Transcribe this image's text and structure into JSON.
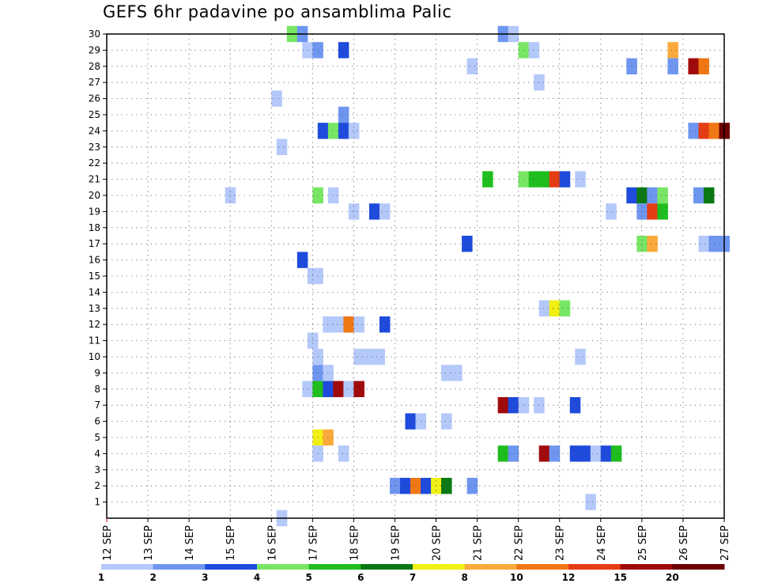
{
  "chart_data": {
    "type": "heatmap",
    "title": "GEFS 6hr padavine po ansamblima Palic",
    "x_start_label_index": 0,
    "x_steps_per_day": 4,
    "x_total_steps": 60,
    "x_labels": [
      "12 SEP",
      "13 SEP",
      "14 SEP",
      "15 SEP",
      "16 SEP",
      "17 SEP",
      "18 SEP",
      "19 SEP",
      "20 SEP",
      "21 SEP",
      "22 SEP",
      "23 SEP",
      "24 SEP",
      "25 SEP",
      "26 SEP",
      "27 SEP"
    ],
    "y_members": [
      1,
      2,
      3,
      4,
      5,
      6,
      7,
      8,
      9,
      10,
      11,
      12,
      13,
      14,
      15,
      16,
      17,
      18,
      19,
      20,
      21,
      22,
      23,
      24,
      25,
      26,
      27,
      28,
      29,
      30
    ],
    "ylim": [
      0,
      30
    ],
    "grid": true,
    "colorbar": {
      "colors": [
        "#b4c8fa",
        "#6e96f0",
        "#1e4bdc",
        "#78e664",
        "#1ebe1e",
        "#0a7814",
        "#f0f014",
        "#faaa3c",
        "#f07814",
        "#e63c14",
        "#a00a0a",
        "#6e0000"
      ],
      "labels": [
        "1",
        "2",
        "3",
        "4",
        "5",
        "6",
        "7",
        "8",
        "10",
        "12",
        "15",
        "20"
      ]
    },
    "cells": [
      [
        17.5,
        30,
        3
      ],
      [
        18.5,
        30,
        1
      ],
      [
        19,
        29,
        0
      ],
      [
        20,
        29,
        1
      ],
      [
        22.5,
        29,
        2
      ],
      [
        38,
        30,
        1
      ],
      [
        39,
        30,
        0
      ],
      [
        40,
        29,
        3
      ],
      [
        41,
        29,
        0
      ],
      [
        54.5,
        29,
        7
      ],
      [
        35,
        28,
        0
      ],
      [
        50.5,
        28,
        1
      ],
      [
        54.5,
        28,
        1
      ],
      [
        56.5,
        28,
        10
      ],
      [
        57.5,
        28,
        8
      ],
      [
        41.5,
        27,
        0
      ],
      [
        16,
        26,
        0
      ],
      [
        22.5,
        25,
        1
      ],
      [
        20.5,
        24,
        2
      ],
      [
        21.5,
        24,
        3
      ],
      [
        22.5,
        24,
        2
      ],
      [
        23.5,
        24,
        0
      ],
      [
        56.5,
        24,
        1
      ],
      [
        57.5,
        24,
        9
      ],
      [
        58.5,
        24,
        8
      ],
      [
        59.5,
        24,
        11
      ],
      [
        16.5,
        23,
        0
      ],
      [
        36.5,
        21,
        4
      ],
      [
        40,
        21,
        3
      ],
      [
        41,
        21,
        4
      ],
      [
        42,
        21,
        4
      ],
      [
        43,
        21,
        9
      ],
      [
        44,
        21,
        2
      ],
      [
        45.5,
        21,
        0
      ],
      [
        11.5,
        20,
        0
      ],
      [
        20,
        20,
        3
      ],
      [
        21.5,
        20,
        0
      ],
      [
        50.5,
        20,
        2
      ],
      [
        51.5,
        20,
        5
      ],
      [
        52.5,
        20,
        1
      ],
      [
        53.5,
        20,
        3
      ],
      [
        57,
        20,
        1
      ],
      [
        58,
        20,
        5
      ],
      [
        23.5,
        19,
        0
      ],
      [
        25.5,
        19,
        2
      ],
      [
        26.5,
        19,
        0
      ],
      [
        48.5,
        19,
        0
      ],
      [
        51.5,
        19,
        1
      ],
      [
        52.5,
        19,
        9
      ],
      [
        53.5,
        19,
        4
      ],
      [
        34.5,
        17,
        2
      ],
      [
        51.5,
        17,
        3
      ],
      [
        52.5,
        17,
        7
      ],
      [
        57.5,
        17,
        0
      ],
      [
        58.5,
        17,
        1
      ],
      [
        59.5,
        17,
        1
      ],
      [
        18.5,
        16,
        2
      ],
      [
        19.5,
        15,
        0
      ],
      [
        20,
        15,
        0
      ],
      [
        42,
        13,
        0
      ],
      [
        43,
        13,
        6
      ],
      [
        44,
        13,
        3
      ],
      [
        21,
        12,
        0
      ],
      [
        22,
        12,
        0
      ],
      [
        23,
        12,
        8
      ],
      [
        24,
        12,
        0
      ],
      [
        26.5,
        12,
        2
      ],
      [
        19.5,
        11,
        0
      ],
      [
        20,
        10,
        0
      ],
      [
        24,
        10,
        0
      ],
      [
        25,
        10,
        0
      ],
      [
        26,
        10,
        0
      ],
      [
        45.5,
        10,
        0
      ],
      [
        20,
        9,
        1
      ],
      [
        21,
        9,
        0
      ],
      [
        32.5,
        9,
        0
      ],
      [
        33.5,
        9,
        0
      ],
      [
        19,
        8,
        0
      ],
      [
        20,
        8,
        4
      ],
      [
        21,
        8,
        2
      ],
      [
        22,
        8,
        10
      ],
      [
        23,
        8,
        0
      ],
      [
        24,
        8,
        10
      ],
      [
        38,
        7,
        10
      ],
      [
        39,
        7,
        2
      ],
      [
        40,
        7,
        0
      ],
      [
        41.5,
        7,
        0
      ],
      [
        45,
        7,
        2
      ],
      [
        29,
        6,
        2
      ],
      [
        30,
        6,
        0
      ],
      [
        32.5,
        6,
        0
      ],
      [
        20,
        5,
        6
      ],
      [
        21,
        5,
        7
      ],
      [
        20,
        4,
        0
      ],
      [
        22.5,
        4,
        0
      ],
      [
        38,
        4,
        4
      ],
      [
        39,
        4,
        1
      ],
      [
        42,
        4,
        10
      ],
      [
        43,
        4,
        1
      ],
      [
        45,
        4,
        2
      ],
      [
        46,
        4,
        2
      ],
      [
        47,
        4,
        0
      ],
      [
        48,
        4,
        2
      ],
      [
        49,
        4,
        4
      ],
      [
        27.5,
        2,
        1
      ],
      [
        28.5,
        2,
        2
      ],
      [
        29.5,
        2,
        8
      ],
      [
        30.5,
        2,
        2
      ],
      [
        31.5,
        2,
        6
      ],
      [
        32.5,
        2,
        5
      ],
      [
        35,
        2,
        1
      ],
      [
        46.5,
        1,
        0
      ],
      [
        16.5,
        0,
        0
      ]
    ]
  }
}
